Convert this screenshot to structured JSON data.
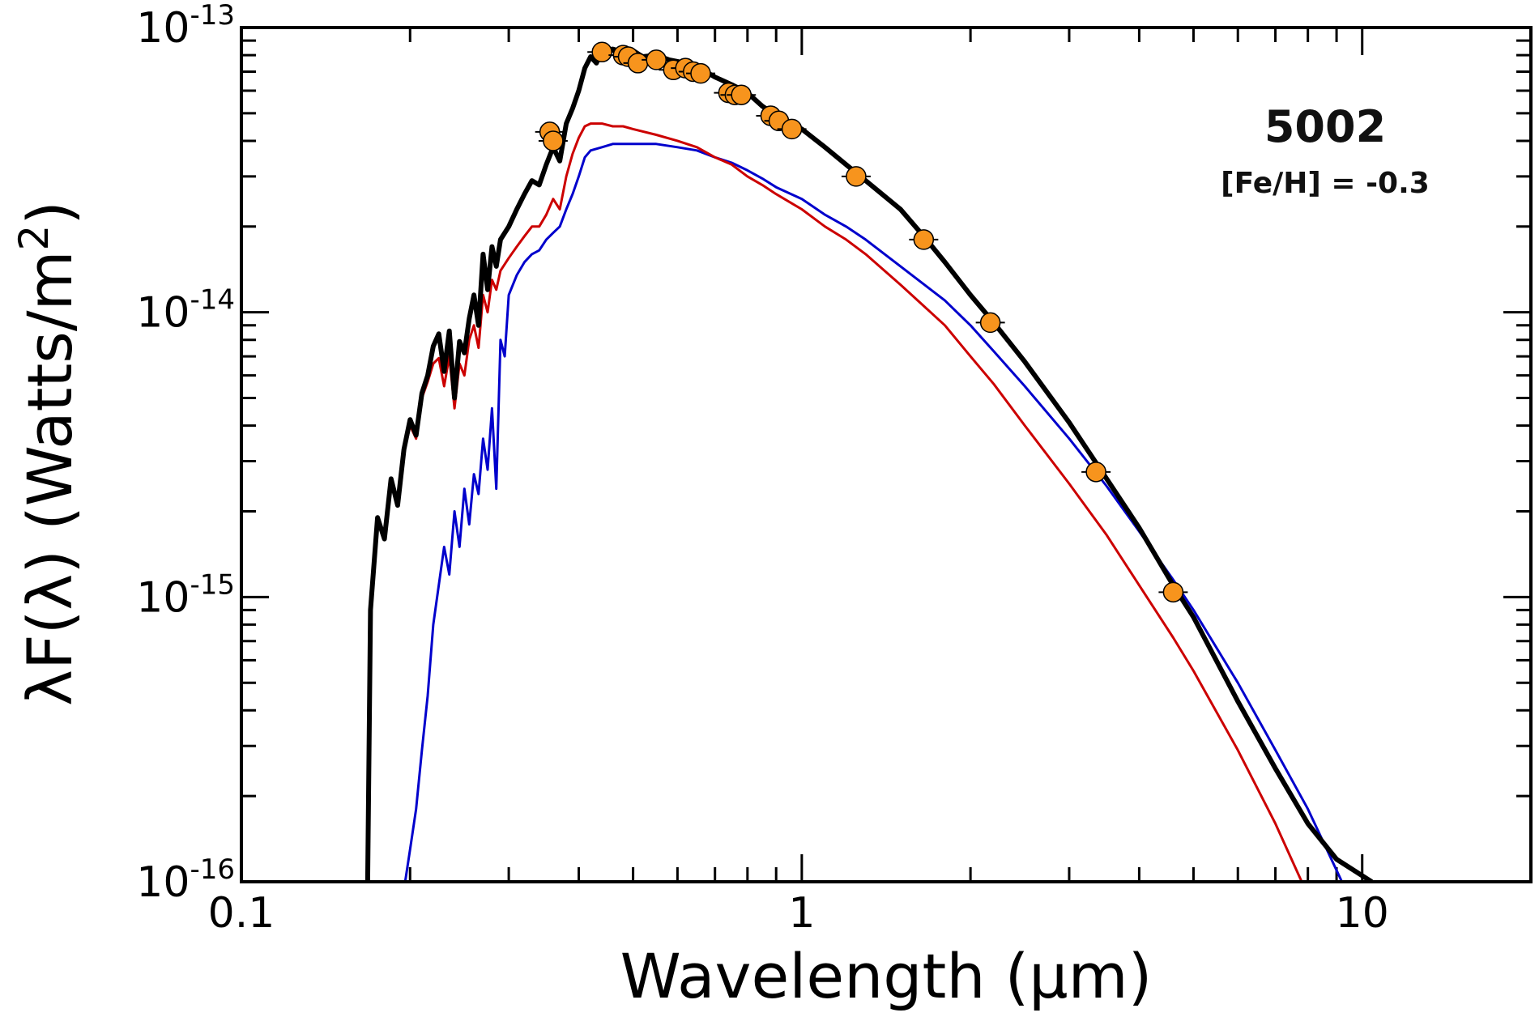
{
  "chart_data": {
    "type": "line",
    "title": "",
    "xlabel": "Wavelength (μm)",
    "ylabel_main": "λF(λ)  (Watts/m",
    "ylabel_sup": "2",
    "ylabel_close": ")",
    "xscale": "log",
    "yscale": "log",
    "xlim": [
      0.1,
      20
    ],
    "ylim": [
      1e-16,
      1e-13
    ],
    "grid": false,
    "x_tick_labels": [
      "0.1",
      "1",
      "10"
    ],
    "x_tick_values": [
      0.1,
      1,
      10
    ],
    "y_ticks": [
      {
        "value": 1e-16,
        "base": "10",
        "exp": "-16"
      },
      {
        "value": 1e-15,
        "base": "10",
        "exp": "-15"
      },
      {
        "value": 1e-14,
        "base": "10",
        "exp": "-14"
      },
      {
        "value": 1e-13,
        "base": "10",
        "exp": "-13"
      }
    ],
    "annotations": [
      {
        "name": "star-id",
        "text": "5002",
        "position": "top-right"
      },
      {
        "name": "metallicity",
        "text": "[Fe/H] = -0.3",
        "position": "top-right"
      }
    ],
    "series": [
      {
        "name": "combined-model",
        "color": "#000000",
        "points": [
          [
            0.168,
            1e-16
          ],
          [
            0.17,
            9e-16
          ],
          [
            0.175,
            1.9e-15
          ],
          [
            0.18,
            1.6e-15
          ],
          [
            0.185,
            2.6e-15
          ],
          [
            0.19,
            2.1e-15
          ],
          [
            0.195,
            3.3e-15
          ],
          [
            0.2,
            4.2e-15
          ],
          [
            0.205,
            3.7e-15
          ],
          [
            0.21,
            5.2e-15
          ],
          [
            0.215,
            6e-15
          ],
          [
            0.22,
            7.6e-15
          ],
          [
            0.225,
            8.4e-15
          ],
          [
            0.23,
            6.2e-15
          ],
          [
            0.235,
            8.6e-15
          ],
          [
            0.24,
            5e-15
          ],
          [
            0.245,
            7.9e-15
          ],
          [
            0.25,
            7.2e-15
          ],
          [
            0.255,
            9.5e-15
          ],
          [
            0.26,
            1.15e-14
          ],
          [
            0.265,
            9e-15
          ],
          [
            0.27,
            1.6e-14
          ],
          [
            0.275,
            1.2e-14
          ],
          [
            0.28,
            1.7e-14
          ],
          [
            0.285,
            1.45e-14
          ],
          [
            0.29,
            1.8e-14
          ],
          [
            0.3,
            2e-14
          ],
          [
            0.31,
            2.3e-14
          ],
          [
            0.32,
            2.6e-14
          ],
          [
            0.33,
            2.9e-14
          ],
          [
            0.34,
            2.8e-14
          ],
          [
            0.35,
            3.3e-14
          ],
          [
            0.36,
            3.8e-14
          ],
          [
            0.37,
            3.4e-14
          ],
          [
            0.38,
            4.6e-14
          ],
          [
            0.39,
            5.2e-14
          ],
          [
            0.4,
            6e-14
          ],
          [
            0.41,
            7.2e-14
          ],
          [
            0.42,
            7.9e-14
          ],
          [
            0.43,
            7.5e-14
          ],
          [
            0.44,
            8.3e-14
          ],
          [
            0.46,
            8.4e-14
          ],
          [
            0.48,
            8.2e-14
          ],
          [
            0.5,
            8.3e-14
          ],
          [
            0.52,
            7.9e-14
          ],
          [
            0.55,
            8e-14
          ],
          [
            0.58,
            7.7e-14
          ],
          [
            0.6,
            7.6e-14
          ],
          [
            0.65,
            7.3e-14
          ],
          [
            0.7,
            6.7e-14
          ],
          [
            0.75,
            6.3e-14
          ],
          [
            0.8,
            5.9e-14
          ],
          [
            0.85,
            5.3e-14
          ],
          [
            0.9,
            4.9e-14
          ],
          [
            0.95,
            4.6e-14
          ],
          [
            1.0,
            4.4e-14
          ],
          [
            1.1,
            3.8e-14
          ],
          [
            1.2,
            3.3e-14
          ],
          [
            1.3,
            2.9e-14
          ],
          [
            1.5,
            2.3e-14
          ],
          [
            1.65,
            1.85e-14
          ],
          [
            1.8,
            1.5e-14
          ],
          [
            2.0,
            1.15e-14
          ],
          [
            2.2,
            9.2e-15
          ],
          [
            2.5,
            6.7e-15
          ],
          [
            3.0,
            4.1e-15
          ],
          [
            3.5,
            2.6e-15
          ],
          [
            4.0,
            1.75e-15
          ],
          [
            4.6,
            1.1e-15
          ],
          [
            5.0,
            8.5e-16
          ],
          [
            6.0,
            4.3e-16
          ],
          [
            7.0,
            2.5e-16
          ],
          [
            8.0,
            1.6e-16
          ],
          [
            9.0,
            1.2e-16
          ],
          [
            10.4,
            1e-16
          ]
        ]
      },
      {
        "name": "red-component",
        "color": "#cc0000",
        "points": [
          [
            0.168,
            1e-16
          ],
          [
            0.17,
            9e-16
          ],
          [
            0.175,
            1.9e-15
          ],
          [
            0.18,
            1.6e-15
          ],
          [
            0.185,
            2.6e-15
          ],
          [
            0.19,
            2.1e-15
          ],
          [
            0.195,
            3.2e-15
          ],
          [
            0.2,
            4e-15
          ],
          [
            0.205,
            3.6e-15
          ],
          [
            0.21,
            5e-15
          ],
          [
            0.215,
            5.7e-15
          ],
          [
            0.22,
            6.6e-15
          ],
          [
            0.225,
            6.9e-15
          ],
          [
            0.23,
            5.5e-15
          ],
          [
            0.235,
            7e-15
          ],
          [
            0.24,
            4.6e-15
          ],
          [
            0.245,
            6.6e-15
          ],
          [
            0.25,
            6e-15
          ],
          [
            0.255,
            8e-15
          ],
          [
            0.26,
            9e-15
          ],
          [
            0.265,
            7.5e-15
          ],
          [
            0.27,
            1.15e-14
          ],
          [
            0.275,
            1e-14
          ],
          [
            0.28,
            1.3e-14
          ],
          [
            0.285,
            1.2e-14
          ],
          [
            0.29,
            1.4e-14
          ],
          [
            0.3,
            1.55e-14
          ],
          [
            0.31,
            1.7e-14
          ],
          [
            0.32,
            1.85e-14
          ],
          [
            0.33,
            2e-14
          ],
          [
            0.34,
            2e-14
          ],
          [
            0.35,
            2.2e-14
          ],
          [
            0.36,
            2.5e-14
          ],
          [
            0.37,
            2.3e-14
          ],
          [
            0.38,
            3e-14
          ],
          [
            0.39,
            3.6e-14
          ],
          [
            0.4,
            4.1e-14
          ],
          [
            0.41,
            4.5e-14
          ],
          [
            0.42,
            4.6e-14
          ],
          [
            0.44,
            4.6e-14
          ],
          [
            0.46,
            4.5e-14
          ],
          [
            0.48,
            4.5e-14
          ],
          [
            0.5,
            4.4e-14
          ],
          [
            0.55,
            4.2e-14
          ],
          [
            0.6,
            4e-14
          ],
          [
            0.65,
            3.8e-14
          ],
          [
            0.7,
            3.5e-14
          ],
          [
            0.75,
            3.3e-14
          ],
          [
            0.8,
            3e-14
          ],
          [
            0.85,
            2.8e-14
          ],
          [
            0.9,
            2.6e-14
          ],
          [
            1.0,
            2.3e-14
          ],
          [
            1.1,
            2e-14
          ],
          [
            1.2,
            1.8e-14
          ],
          [
            1.3,
            1.6e-14
          ],
          [
            1.5,
            1.25e-14
          ],
          [
            1.8,
            9e-15
          ],
          [
            2.0,
            7e-15
          ],
          [
            2.2,
            5.6e-15
          ],
          [
            2.5,
            4e-15
          ],
          [
            3.0,
            2.5e-15
          ],
          [
            3.5,
            1.65e-15
          ],
          [
            4.0,
            1.1e-15
          ],
          [
            4.6,
            7.2e-16
          ],
          [
            5.0,
            5.5e-16
          ],
          [
            6.0,
            2.9e-16
          ],
          [
            7.0,
            1.6e-16
          ],
          [
            7.8,
            1e-16
          ]
        ]
      },
      {
        "name": "blue-component",
        "color": "#0000cc",
        "points": [
          [
            0.196,
            1e-16
          ],
          [
            0.2,
            1.3e-16
          ],
          [
            0.205,
            1.8e-16
          ],
          [
            0.21,
            2.9e-16
          ],
          [
            0.215,
            4.5e-16
          ],
          [
            0.22,
            8e-16
          ],
          [
            0.225,
            1.1e-15
          ],
          [
            0.23,
            1.5e-15
          ],
          [
            0.235,
            1.2e-15
          ],
          [
            0.24,
            2e-15
          ],
          [
            0.245,
            1.5e-15
          ],
          [
            0.25,
            2.4e-15
          ],
          [
            0.255,
            1.8e-15
          ],
          [
            0.26,
            2.7e-15
          ],
          [
            0.265,
            2.3e-15
          ],
          [
            0.27,
            3.6e-15
          ],
          [
            0.275,
            2.8e-15
          ],
          [
            0.28,
            4.6e-15
          ],
          [
            0.285,
            2.4e-15
          ],
          [
            0.29,
            8e-15
          ],
          [
            0.295,
            7e-15
          ],
          [
            0.3,
            1.15e-14
          ],
          [
            0.31,
            1.35e-14
          ],
          [
            0.32,
            1.5e-14
          ],
          [
            0.33,
            1.6e-14
          ],
          [
            0.34,
            1.65e-14
          ],
          [
            0.35,
            1.8e-14
          ],
          [
            0.36,
            1.9e-14
          ],
          [
            0.37,
            2e-14
          ],
          [
            0.38,
            2.3e-14
          ],
          [
            0.39,
            2.6e-14
          ],
          [
            0.4,
            3e-14
          ],
          [
            0.41,
            3.5e-14
          ],
          [
            0.42,
            3.7e-14
          ],
          [
            0.44,
            3.8e-14
          ],
          [
            0.46,
            3.9e-14
          ],
          [
            0.5,
            3.9e-14
          ],
          [
            0.55,
            3.9e-14
          ],
          [
            0.6,
            3.8e-14
          ],
          [
            0.65,
            3.7e-14
          ],
          [
            0.7,
            3.5e-14
          ],
          [
            0.75,
            3.35e-14
          ],
          [
            0.8,
            3.15e-14
          ],
          [
            0.85,
            2.95e-14
          ],
          [
            0.9,
            2.75e-14
          ],
          [
            1.0,
            2.5e-14
          ],
          [
            1.1,
            2.2e-14
          ],
          [
            1.2,
            2e-14
          ],
          [
            1.3,
            1.8e-14
          ],
          [
            1.5,
            1.45e-14
          ],
          [
            1.8,
            1.1e-14
          ],
          [
            2.0,
            9e-15
          ],
          [
            2.2,
            7.3e-15
          ],
          [
            2.5,
            5.5e-15
          ],
          [
            3.0,
            3.6e-15
          ],
          [
            3.5,
            2.45e-15
          ],
          [
            4.0,
            1.7e-15
          ],
          [
            4.6,
            1.15e-15
          ],
          [
            5.0,
            9e-16
          ],
          [
            6.0,
            5e-16
          ],
          [
            7.0,
            2.9e-16
          ],
          [
            8.0,
            1.8e-16
          ],
          [
            9.2,
            1e-16
          ]
        ]
      },
      {
        "name": "photometry",
        "type": "scatter",
        "color": "#f7941d",
        "points": [
          [
            0.355,
            4.3e-14
          ],
          [
            0.36,
            4e-14
          ],
          [
            0.44,
            8.2e-14
          ],
          [
            0.48,
            8e-14
          ],
          [
            0.49,
            7.9e-14
          ],
          [
            0.51,
            7.5e-14
          ],
          [
            0.55,
            7.7e-14
          ],
          [
            0.59,
            7.1e-14
          ],
          [
            0.62,
            7.2e-14
          ],
          [
            0.64,
            7e-14
          ],
          [
            0.66,
            6.9e-14
          ],
          [
            0.74,
            5.9e-14
          ],
          [
            0.76,
            5.8e-14
          ],
          [
            0.78,
            5.8e-14
          ],
          [
            0.88,
            4.9e-14
          ],
          [
            0.91,
            4.7e-14
          ],
          [
            0.96,
            4.4e-14
          ],
          [
            1.25,
            3e-14
          ],
          [
            1.65,
            1.8e-14
          ],
          [
            2.17,
            9.2e-15
          ],
          [
            3.35,
            2.75e-15
          ],
          [
            4.6,
            1.04e-15
          ]
        ]
      }
    ]
  }
}
